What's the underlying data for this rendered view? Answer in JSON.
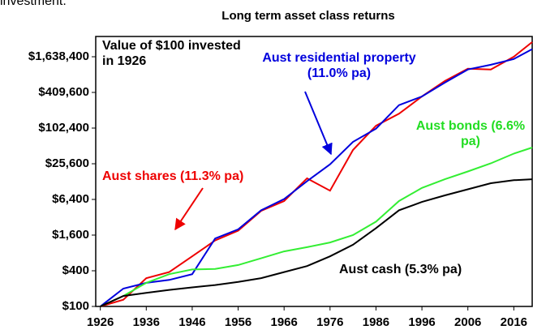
{
  "page_text": "investment.",
  "chart_data": {
    "type": "line",
    "title": "Long term asset class returns",
    "annotation": "Value of $100 invested in 1926",
    "x": [
      1926,
      1931,
      1936,
      1941,
      1946,
      1951,
      1956,
      1961,
      1966,
      1971,
      1976,
      1981,
      1986,
      1991,
      1996,
      2001,
      2006,
      2011,
      2016,
      2020
    ],
    "series": [
      {
        "name": "Aust shares (11.3% pa)",
        "color": "#ee0000",
        "values": [
          100,
          130,
          300,
          380,
          700,
          1300,
          1900,
          4100,
          6000,
          14500,
          9000,
          43700,
          112000,
          179000,
          350000,
          640000,
          1030000,
          1000000,
          1638400,
          2900000
        ]
      },
      {
        "name": "Aust residential property (11.0% pa)",
        "color": "#0000dd",
        "values": [
          100,
          200,
          250,
          280,
          350,
          1400,
          2000,
          4200,
          6500,
          13000,
          25000,
          60000,
          100000,
          250000,
          350000,
          600000,
          1000000,
          1200000,
          1500000,
          2200000
        ]
      },
      {
        "name": "Aust bonds (6.6% pa)",
        "color": "#33ee33",
        "values": [
          100,
          150,
          250,
          350,
          420,
          430,
          500,
          650,
          850,
          1000,
          1200,
          1600,
          2700,
          6000,
          10000,
          14000,
          19000,
          26000,
          38000,
          48000
        ]
      },
      {
        "name": "Aust cash (5.3% pa)",
        "color": "#000000",
        "values": [
          100,
          150,
          170,
          190,
          210,
          230,
          260,
          300,
          380,
          480,
          700,
          1100,
          2100,
          4200,
          5800,
          7500,
          9500,
          12000,
          13500,
          14000
        ]
      }
    ],
    "xlim": [
      1925,
      2020
    ],
    "xticks": [
      1926,
      1936,
      1946,
      1956,
      1966,
      1976,
      1986,
      1996,
      2006,
      2016
    ],
    "ylim": [
      100,
      3600000
    ],
    "log_scale_y": true,
    "yticks": [
      {
        "value": 100,
        "label": "$100"
      },
      {
        "value": 400,
        "label": "$400"
      },
      {
        "value": 1600,
        "label": "$1,600"
      },
      {
        "value": 6400,
        "label": "$6,400"
      },
      {
        "value": 25600,
        "label": "$25,600"
      },
      {
        "value": 102400,
        "label": "$102,400"
      },
      {
        "value": 409600,
        "label": "$409,600"
      },
      {
        "value": 1638400,
        "label": "$1,638,400"
      }
    ],
    "grid": false
  }
}
